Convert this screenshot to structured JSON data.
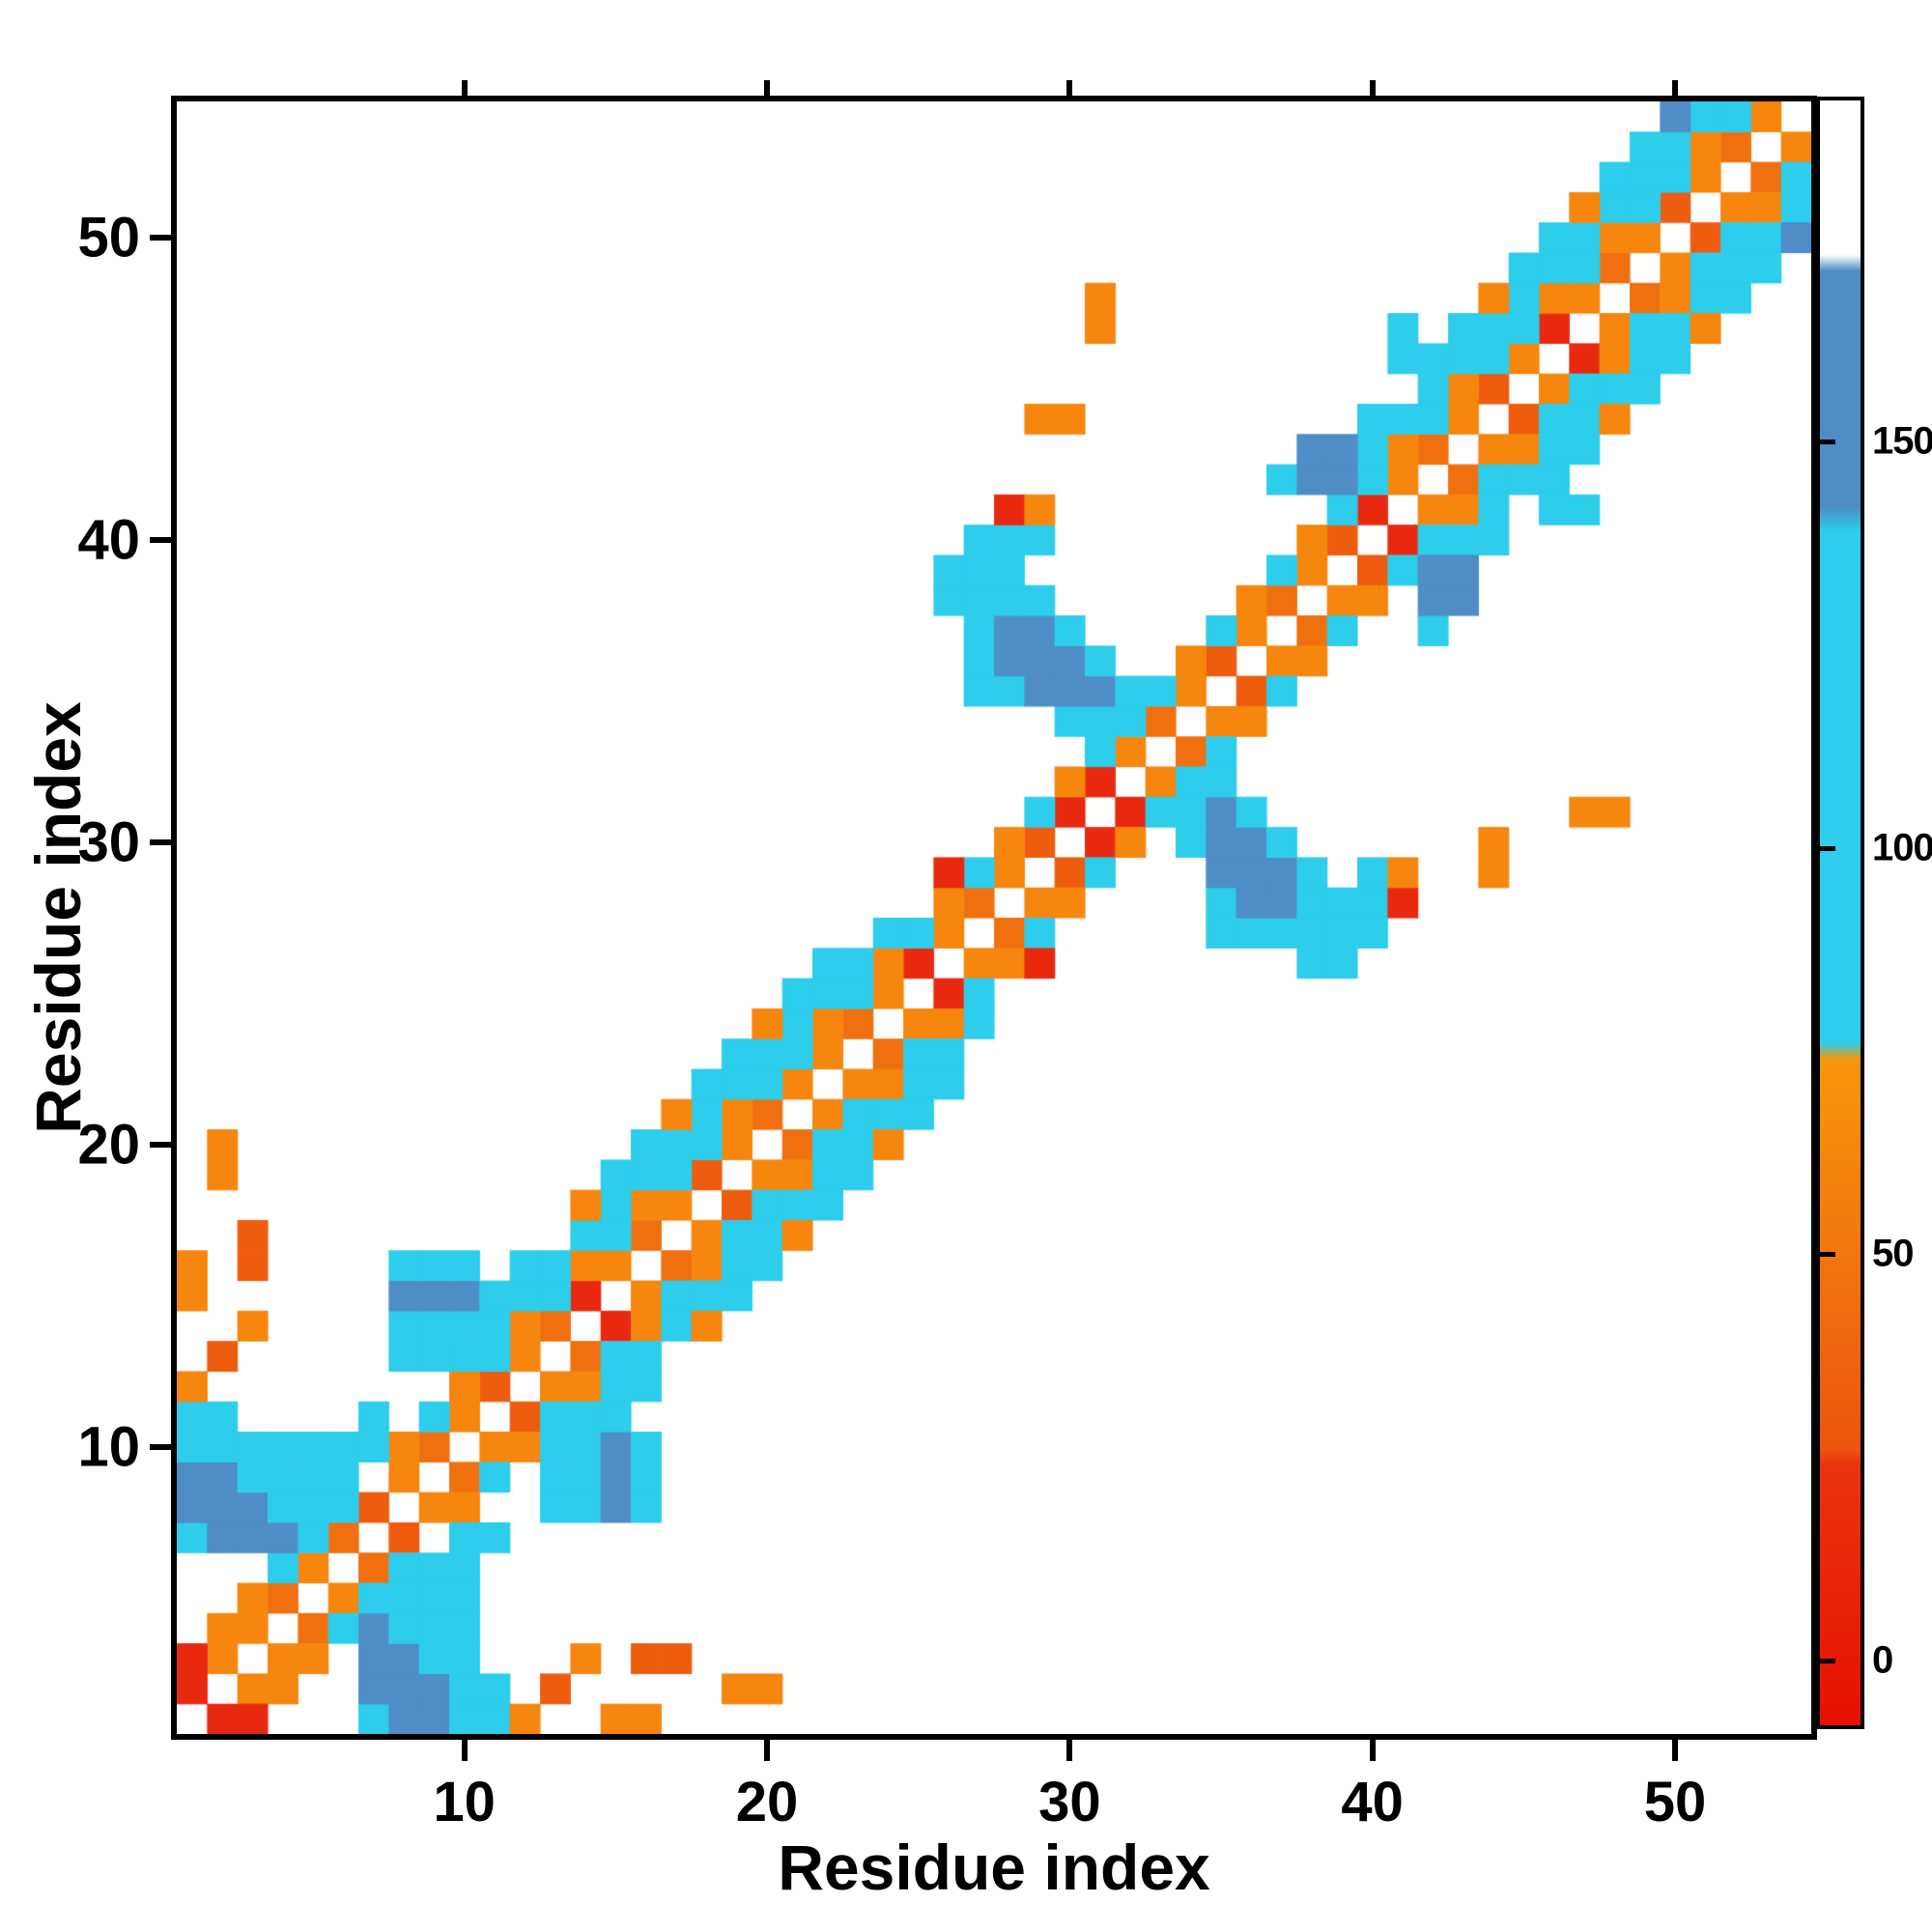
{
  "figure": {
    "x_ticks": [
      10,
      20,
      30,
      40,
      50
    ],
    "y_ticks": [
      10,
      20,
      30,
      40,
      50
    ],
    "background": "#ffffff",
    "frame_color": "#000000"
  },
  "chart_data": {
    "type": "heatmap",
    "title": "",
    "xlabel": "Residue index",
    "ylabel": "Residue index",
    "n_residues": 54,
    "x_range": [
      1,
      54
    ],
    "y_range": [
      1,
      54
    ],
    "symmetric": true,
    "diagonal_masked": true,
    "grid": false,
    "colorbar": {
      "ticks": [
        0,
        50,
        100,
        150
      ],
      "value_domain": [
        -8,
        192
      ],
      "stops": [
        {
          "v": -8,
          "color": "#e81102"
        },
        {
          "v": 24,
          "color": "#e8350f"
        },
        {
          "v": 26,
          "color": "#ec5510"
        },
        {
          "v": 74,
          "color": "#f8970d"
        },
        {
          "v": 76,
          "color": "#2dcdeb"
        },
        {
          "v": 139,
          "color": "#2dcdeb"
        },
        {
          "v": 142,
          "color": "#4e8dc6"
        },
        {
          "v": 171,
          "color": "#4e8dc6"
        },
        {
          "v": 173,
          "color": "#ffffff"
        },
        {
          "v": 192,
          "color": "#ffffff"
        }
      ]
    },
    "colormap_bins": [
      {
        "max": 25,
        "color": "#e8290f"
      },
      {
        "max": 47,
        "color": "#ee5c10"
      },
      {
        "max": 52,
        "color": "#f0700f"
      },
      {
        "max": 75,
        "color": "#f6860e"
      },
      {
        "max": 140,
        "color": "#2dcdeb"
      },
      {
        "max": 173,
        "color": "#4e8dc6"
      },
      {
        "max": 999,
        "color": "#ffffff"
      }
    ],
    "cells": [
      [
        1,
        2,
        8
      ],
      [
        2,
        3,
        55
      ],
      [
        3,
        4,
        55
      ],
      [
        4,
        5,
        50
      ],
      [
        5,
        6,
        55
      ],
      [
        6,
        7,
        50
      ],
      [
        7,
        8,
        45
      ],
      [
        8,
        9,
        55
      ],
      [
        9,
        10,
        50
      ],
      [
        10,
        11,
        55
      ],
      [
        11,
        12,
        45
      ],
      [
        12,
        13,
        55
      ],
      [
        13,
        14,
        50
      ],
      [
        14,
        15,
        8
      ],
      [
        15,
        16,
        55
      ],
      [
        16,
        17,
        50
      ],
      [
        17,
        18,
        55
      ],
      [
        18,
        19,
        45
      ],
      [
        19,
        20,
        55
      ],
      [
        20,
        21,
        50
      ],
      [
        21,
        22,
        55
      ],
      [
        22,
        23,
        55
      ],
      [
        23,
        24,
        50
      ],
      [
        24,
        25,
        55
      ],
      [
        25,
        26,
        8
      ],
      [
        26,
        27,
        55
      ],
      [
        27,
        28,
        50
      ],
      [
        28,
        29,
        55
      ],
      [
        29,
        30,
        45
      ],
      [
        30,
        31,
        8
      ],
      [
        31,
        32,
        8
      ],
      [
        32,
        33,
        55
      ],
      [
        33,
        34,
        50
      ],
      [
        34,
        35,
        55
      ],
      [
        35,
        36,
        45
      ],
      [
        36,
        37,
        55
      ],
      [
        37,
        38,
        50
      ],
      [
        38,
        39,
        55
      ],
      [
        39,
        40,
        45
      ],
      [
        40,
        41,
        8
      ],
      [
        41,
        42,
        55
      ],
      [
        42,
        43,
        50
      ],
      [
        43,
        44,
        55
      ],
      [
        44,
        45,
        45
      ],
      [
        45,
        46,
        55
      ],
      [
        46,
        47,
        8
      ],
      [
        47,
        48,
        55
      ],
      [
        48,
        49,
        50
      ],
      [
        49,
        50,
        55
      ],
      [
        50,
        51,
        45
      ],
      [
        51,
        52,
        55
      ],
      [
        52,
        53,
        50
      ],
      [
        53,
        54,
        55
      ],
      [
        1,
        3,
        8
      ],
      [
        2,
        4,
        55
      ],
      [
        3,
        5,
        55
      ],
      [
        4,
        6,
        110
      ],
      [
        6,
        8,
        110
      ],
      [
        8,
        10,
        55
      ],
      [
        9,
        11,
        110
      ],
      [
        10,
        12,
        55
      ],
      [
        11,
        13,
        110
      ],
      [
        12,
        14,
        55
      ],
      [
        13,
        15,
        110
      ],
      [
        14,
        16,
        55
      ],
      [
        15,
        17,
        110
      ],
      [
        16,
        18,
        55
      ],
      [
        17,
        19,
        110
      ],
      [
        18,
        20,
        110
      ],
      [
        19,
        21,
        55
      ],
      [
        20,
        22,
        110
      ],
      [
        21,
        23,
        110
      ],
      [
        22,
        24,
        55
      ],
      [
        23,
        25,
        110
      ],
      [
        24,
        26,
        55
      ],
      [
        25,
        27,
        110
      ],
      [
        26,
        28,
        55
      ],
      [
        27,
        29,
        110
      ],
      [
        28,
        30,
        55
      ],
      [
        29,
        31,
        110
      ],
      [
        30,
        32,
        55
      ],
      [
        31,
        33,
        110
      ],
      [
        33,
        35,
        110
      ],
      [
        34,
        36,
        55
      ],
      [
        35,
        37,
        110
      ],
      [
        36,
        38,
        55
      ],
      [
        37,
        39,
        110
      ],
      [
        38,
        40,
        55
      ],
      [
        39,
        41,
        110
      ],
      [
        40,
        42,
        110
      ],
      [
        41,
        43,
        55
      ],
      [
        42,
        44,
        110
      ],
      [
        43,
        45,
        55
      ],
      [
        44,
        46,
        110
      ],
      [
        45,
        47,
        110
      ],
      [
        46,
        48,
        55
      ],
      [
        47,
        49,
        110
      ],
      [
        48,
        50,
        55
      ],
      [
        49,
        51,
        110
      ],
      [
        50,
        52,
        110
      ],
      [
        51,
        53,
        55
      ],
      [
        52,
        54,
        110
      ],
      [
        6,
        9,
        110
      ],
      [
        7,
        10,
        110
      ],
      [
        10,
        13,
        110
      ],
      [
        11,
        14,
        110
      ],
      [
        12,
        15,
        110
      ],
      [
        13,
        16,
        110
      ],
      [
        14,
        17,
        110
      ],
      [
        15,
        18,
        110
      ],
      [
        16,
        19,
        110
      ],
      [
        17,
        20,
        110
      ],
      [
        18,
        21,
        110
      ],
      [
        19,
        22,
        110
      ],
      [
        20,
        23,
        110
      ],
      [
        21,
        24,
        110
      ],
      [
        22,
        25,
        110
      ],
      [
        23,
        26,
        110
      ],
      [
        24,
        27,
        110
      ],
      [
        40,
        43,
        110
      ],
      [
        41,
        44,
        110
      ],
      [
        42,
        45,
        110
      ],
      [
        43,
        46,
        110
      ],
      [
        44,
        47,
        110
      ],
      [
        45,
        48,
        110
      ],
      [
        46,
        49,
        110
      ],
      [
        47,
        50,
        110
      ],
      [
        48,
        51,
        110
      ],
      [
        49,
        52,
        110
      ],
      [
        50,
        53,
        110
      ],
      [
        51,
        54,
        110
      ],
      [
        6,
        10,
        110
      ],
      [
        7,
        11,
        110
      ],
      [
        14,
        18,
        55
      ],
      [
        15,
        19,
        110
      ],
      [
        16,
        20,
        110
      ],
      [
        17,
        21,
        55
      ],
      [
        18,
        22,
        110
      ],
      [
        19,
        23,
        110
      ],
      [
        20,
        24,
        55
      ],
      [
        21,
        25,
        110
      ],
      [
        22,
        26,
        110
      ],
      [
        42,
        46,
        110
      ],
      [
        43,
        47,
        110
      ],
      [
        44,
        48,
        55
      ],
      [
        45,
        49,
        110
      ],
      [
        46,
        50,
        110
      ],
      [
        47,
        51,
        55
      ],
      [
        48,
        52,
        110
      ],
      [
        1,
        7,
        110
      ],
      [
        1,
        8,
        155
      ],
      [
        1,
        9,
        155
      ],
      [
        1,
        10,
        110
      ],
      [
        1,
        11,
        110
      ],
      [
        2,
        7,
        155
      ],
      [
        2,
        8,
        155
      ],
      [
        2,
        9,
        155
      ],
      [
        2,
        10,
        110
      ],
      [
        2,
        11,
        110
      ],
      [
        3,
        7,
        155
      ],
      [
        3,
        8,
        155
      ],
      [
        3,
        9,
        110
      ],
      [
        3,
        10,
        110
      ],
      [
        4,
        7,
        155
      ],
      [
        4,
        8,
        110
      ],
      [
        4,
        9,
        110
      ],
      [
        4,
        10,
        110
      ],
      [
        5,
        7,
        110
      ],
      [
        5,
        8,
        110
      ],
      [
        5,
        9,
        110
      ],
      [
        5,
        10,
        110
      ],
      [
        8,
        13,
        110
      ],
      [
        9,
        13,
        110
      ],
      [
        8,
        14,
        110
      ],
      [
        9,
        14,
        110
      ],
      [
        10,
        14,
        110
      ],
      [
        8,
        15,
        155
      ],
      [
        9,
        15,
        155
      ],
      [
        10,
        15,
        155
      ],
      [
        11,
        15,
        110
      ],
      [
        8,
        16,
        110
      ],
      [
        9,
        16,
        110
      ],
      [
        10,
        16,
        110
      ],
      [
        12,
        16,
        110
      ],
      [
        1,
        12,
        55
      ],
      [
        2,
        13,
        45
      ],
      [
        3,
        14,
        55
      ],
      [
        1,
        15,
        55
      ],
      [
        1,
        16,
        55
      ],
      [
        3,
        16,
        45
      ],
      [
        3,
        17,
        45
      ],
      [
        2,
        19,
        55
      ],
      [
        2,
        20,
        55
      ],
      [
        26,
        38,
        110
      ],
      [
        26,
        39,
        110
      ],
      [
        27,
        35,
        110
      ],
      [
        27,
        36,
        110
      ],
      [
        27,
        37,
        110
      ],
      [
        27,
        38,
        110
      ],
      [
        27,
        39,
        110
      ],
      [
        27,
        40,
        110
      ],
      [
        28,
        35,
        110
      ],
      [
        28,
        36,
        155
      ],
      [
        28,
        37,
        155
      ],
      [
        28,
        38,
        110
      ],
      [
        28,
        39,
        110
      ],
      [
        28,
        40,
        110
      ],
      [
        28,
        41,
        8
      ],
      [
        29,
        35,
        155
      ],
      [
        29,
        36,
        155
      ],
      [
        29,
        37,
        155
      ],
      [
        29,
        38,
        110
      ],
      [
        29,
        40,
        110
      ],
      [
        29,
        41,
        55
      ],
      [
        30,
        34,
        110
      ],
      [
        30,
        35,
        155
      ],
      [
        30,
        36,
        155
      ],
      [
        30,
        37,
        110
      ],
      [
        31,
        34,
        110
      ],
      [
        31,
        35,
        155
      ],
      [
        31,
        36,
        110
      ],
      [
        32,
        34,
        110
      ],
      [
        32,
        35,
        110
      ],
      [
        26,
        29,
        8
      ],
      [
        29,
        44,
        55
      ],
      [
        30,
        44,
        55
      ],
      [
        31,
        47,
        55
      ],
      [
        31,
        48,
        55
      ],
      [
        37,
        42,
        110
      ],
      [
        38,
        42,
        155
      ],
      [
        38,
        43,
        155
      ],
      [
        39,
        42,
        155
      ],
      [
        39,
        43,
        155
      ],
      [
        40,
        44,
        110
      ],
      [
        41,
        46,
        110
      ],
      [
        41,
        47,
        110
      ],
      [
        49,
        53,
        110
      ],
      [
        50,
        54,
        155
      ]
    ]
  }
}
